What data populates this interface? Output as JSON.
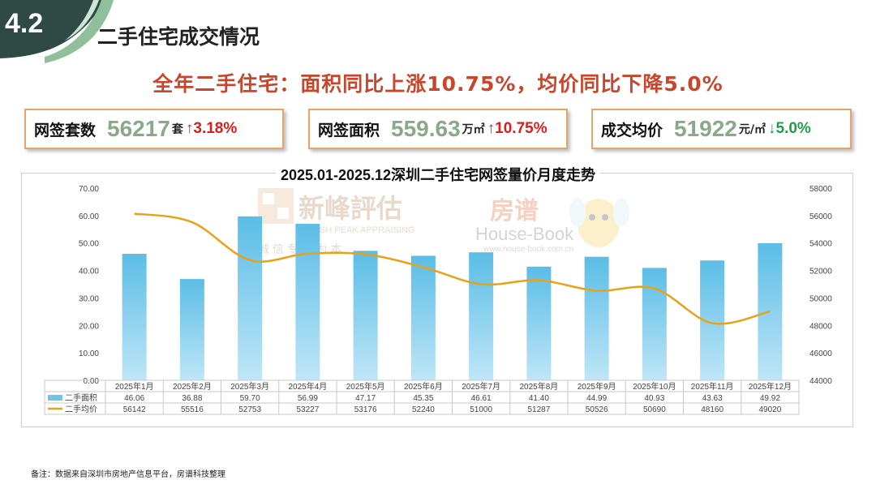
{
  "section": {
    "number": "4.2",
    "title": "二手住宅成交情况"
  },
  "headline": "全年二手住宅：面积同比上涨10.75%，均价同比下降5.0%",
  "colors": {
    "accent_red": "#d81e1e",
    "accent_green": "#1e9e4a",
    "bar": "#66c3e8",
    "line": "#e8a21a",
    "value_green": "#8aa88a"
  },
  "cards": [
    {
      "label": "网签套数",
      "value": "56217",
      "unit": "套",
      "arrow": "↑",
      "change": "3.18%",
      "direction": "up"
    },
    {
      "label": "网签面积",
      "value": "559.63",
      "unit": "万㎡",
      "arrow": "↑",
      "change": "10.75%",
      "direction": "up"
    },
    {
      "label": "成交均价",
      "value": "51922",
      "unit": "元/㎡",
      "arrow": "↓",
      "change": "5.0%",
      "direction": "down"
    }
  ],
  "watermarks": {
    "brand1": "新峰評估",
    "brand1_en": "FRESH PEAK APPRAISING",
    "brand1_slogan": "诚 信   专 业 为 本",
    "brand2": "房谱",
    "brand2_en": "House-Book",
    "brand2_url": "www.house-book.com.cn"
  },
  "footnote": "备注：数据来自深圳市房地产信息平台，房谱科技整理",
  "chart_data": {
    "type": "bar",
    "title": "2025.01-2025.12深圳二手住宅网签量价月度走势",
    "categories": [
      "2025年1月",
      "2025年2月",
      "2025年3月",
      "2025年4月",
      "2025年5月",
      "2025年6月",
      "2025年7月",
      "2025年8月",
      "2025年9月",
      "2025年10月",
      "2025年11月",
      "2025年12月"
    ],
    "series": [
      {
        "name": "二手面积",
        "type": "bar",
        "axis": "left",
        "values": [
          46.06,
          36.88,
          59.7,
          56.99,
          47.17,
          45.35,
          46.61,
          41.4,
          44.99,
          40.93,
          43.63,
          49.92
        ],
        "labels": [
          "46.06",
          "36.88",
          "59.70",
          "56.99",
          "47.17",
          "45.35",
          "46.61",
          "41.40",
          "44.99",
          "40.93",
          "43.63",
          "49.92"
        ]
      },
      {
        "name": "二手均价",
        "type": "line",
        "axis": "right",
        "values": [
          56142,
          55516,
          52753,
          53227,
          53176,
          52240,
          51000,
          51287,
          50526,
          50690,
          48160,
          49020
        ],
        "labels": [
          "56142",
          "55516",
          "52753",
          "53227",
          "53176",
          "52240",
          "51000",
          "51287",
          "50526",
          "50690",
          "48160",
          "49020"
        ]
      }
    ],
    "yleft": {
      "min": 0,
      "max": 70,
      "ticks": [
        "0.00",
        "10.00",
        "20.00",
        "30.00",
        "40.00",
        "50.00",
        "60.00",
        "70.00"
      ]
    },
    "yright": {
      "min": 44000,
      "max": 58000,
      "ticks": [
        "44000",
        "46000",
        "48000",
        "50000",
        "52000",
        "54000",
        "56000",
        "58000"
      ]
    },
    "legend": "table-bottom",
    "grid": false
  }
}
